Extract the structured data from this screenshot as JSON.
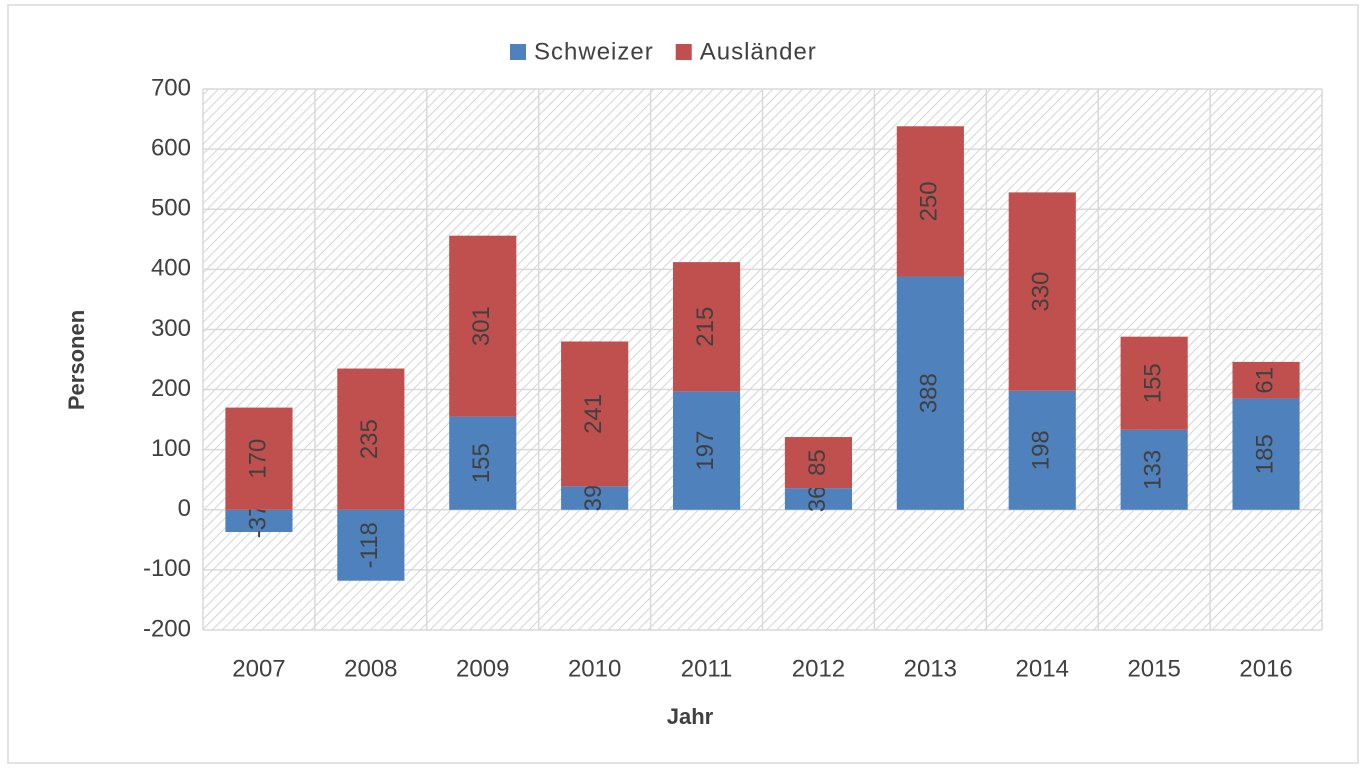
{
  "chart_data": {
    "type": "bar",
    "stacked": true,
    "x_label": "Jahr",
    "y_label": "Personen",
    "categories": [
      "2007",
      "2008",
      "2009",
      "2010",
      "2011",
      "2012",
      "2013",
      "2014",
      "2015",
      "2016"
    ],
    "series": [
      {
        "name": "Schweizer",
        "color": "#4f81bd",
        "values": [
          -37,
          -118,
          155,
          39,
          197,
          36,
          388,
          198,
          133,
          185
        ]
      },
      {
        "name": "Ausländer",
        "color": "#c0504d",
        "values": [
          170,
          235,
          301,
          241,
          215,
          85,
          250,
          330,
          155,
          61
        ]
      }
    ],
    "ylim": [
      -200,
      700
    ],
    "yticks": [
      -200,
      -100,
      0,
      100,
      200,
      300,
      400,
      500,
      600,
      700
    ],
    "grid": true,
    "legend": "top",
    "data_labels": true
  }
}
